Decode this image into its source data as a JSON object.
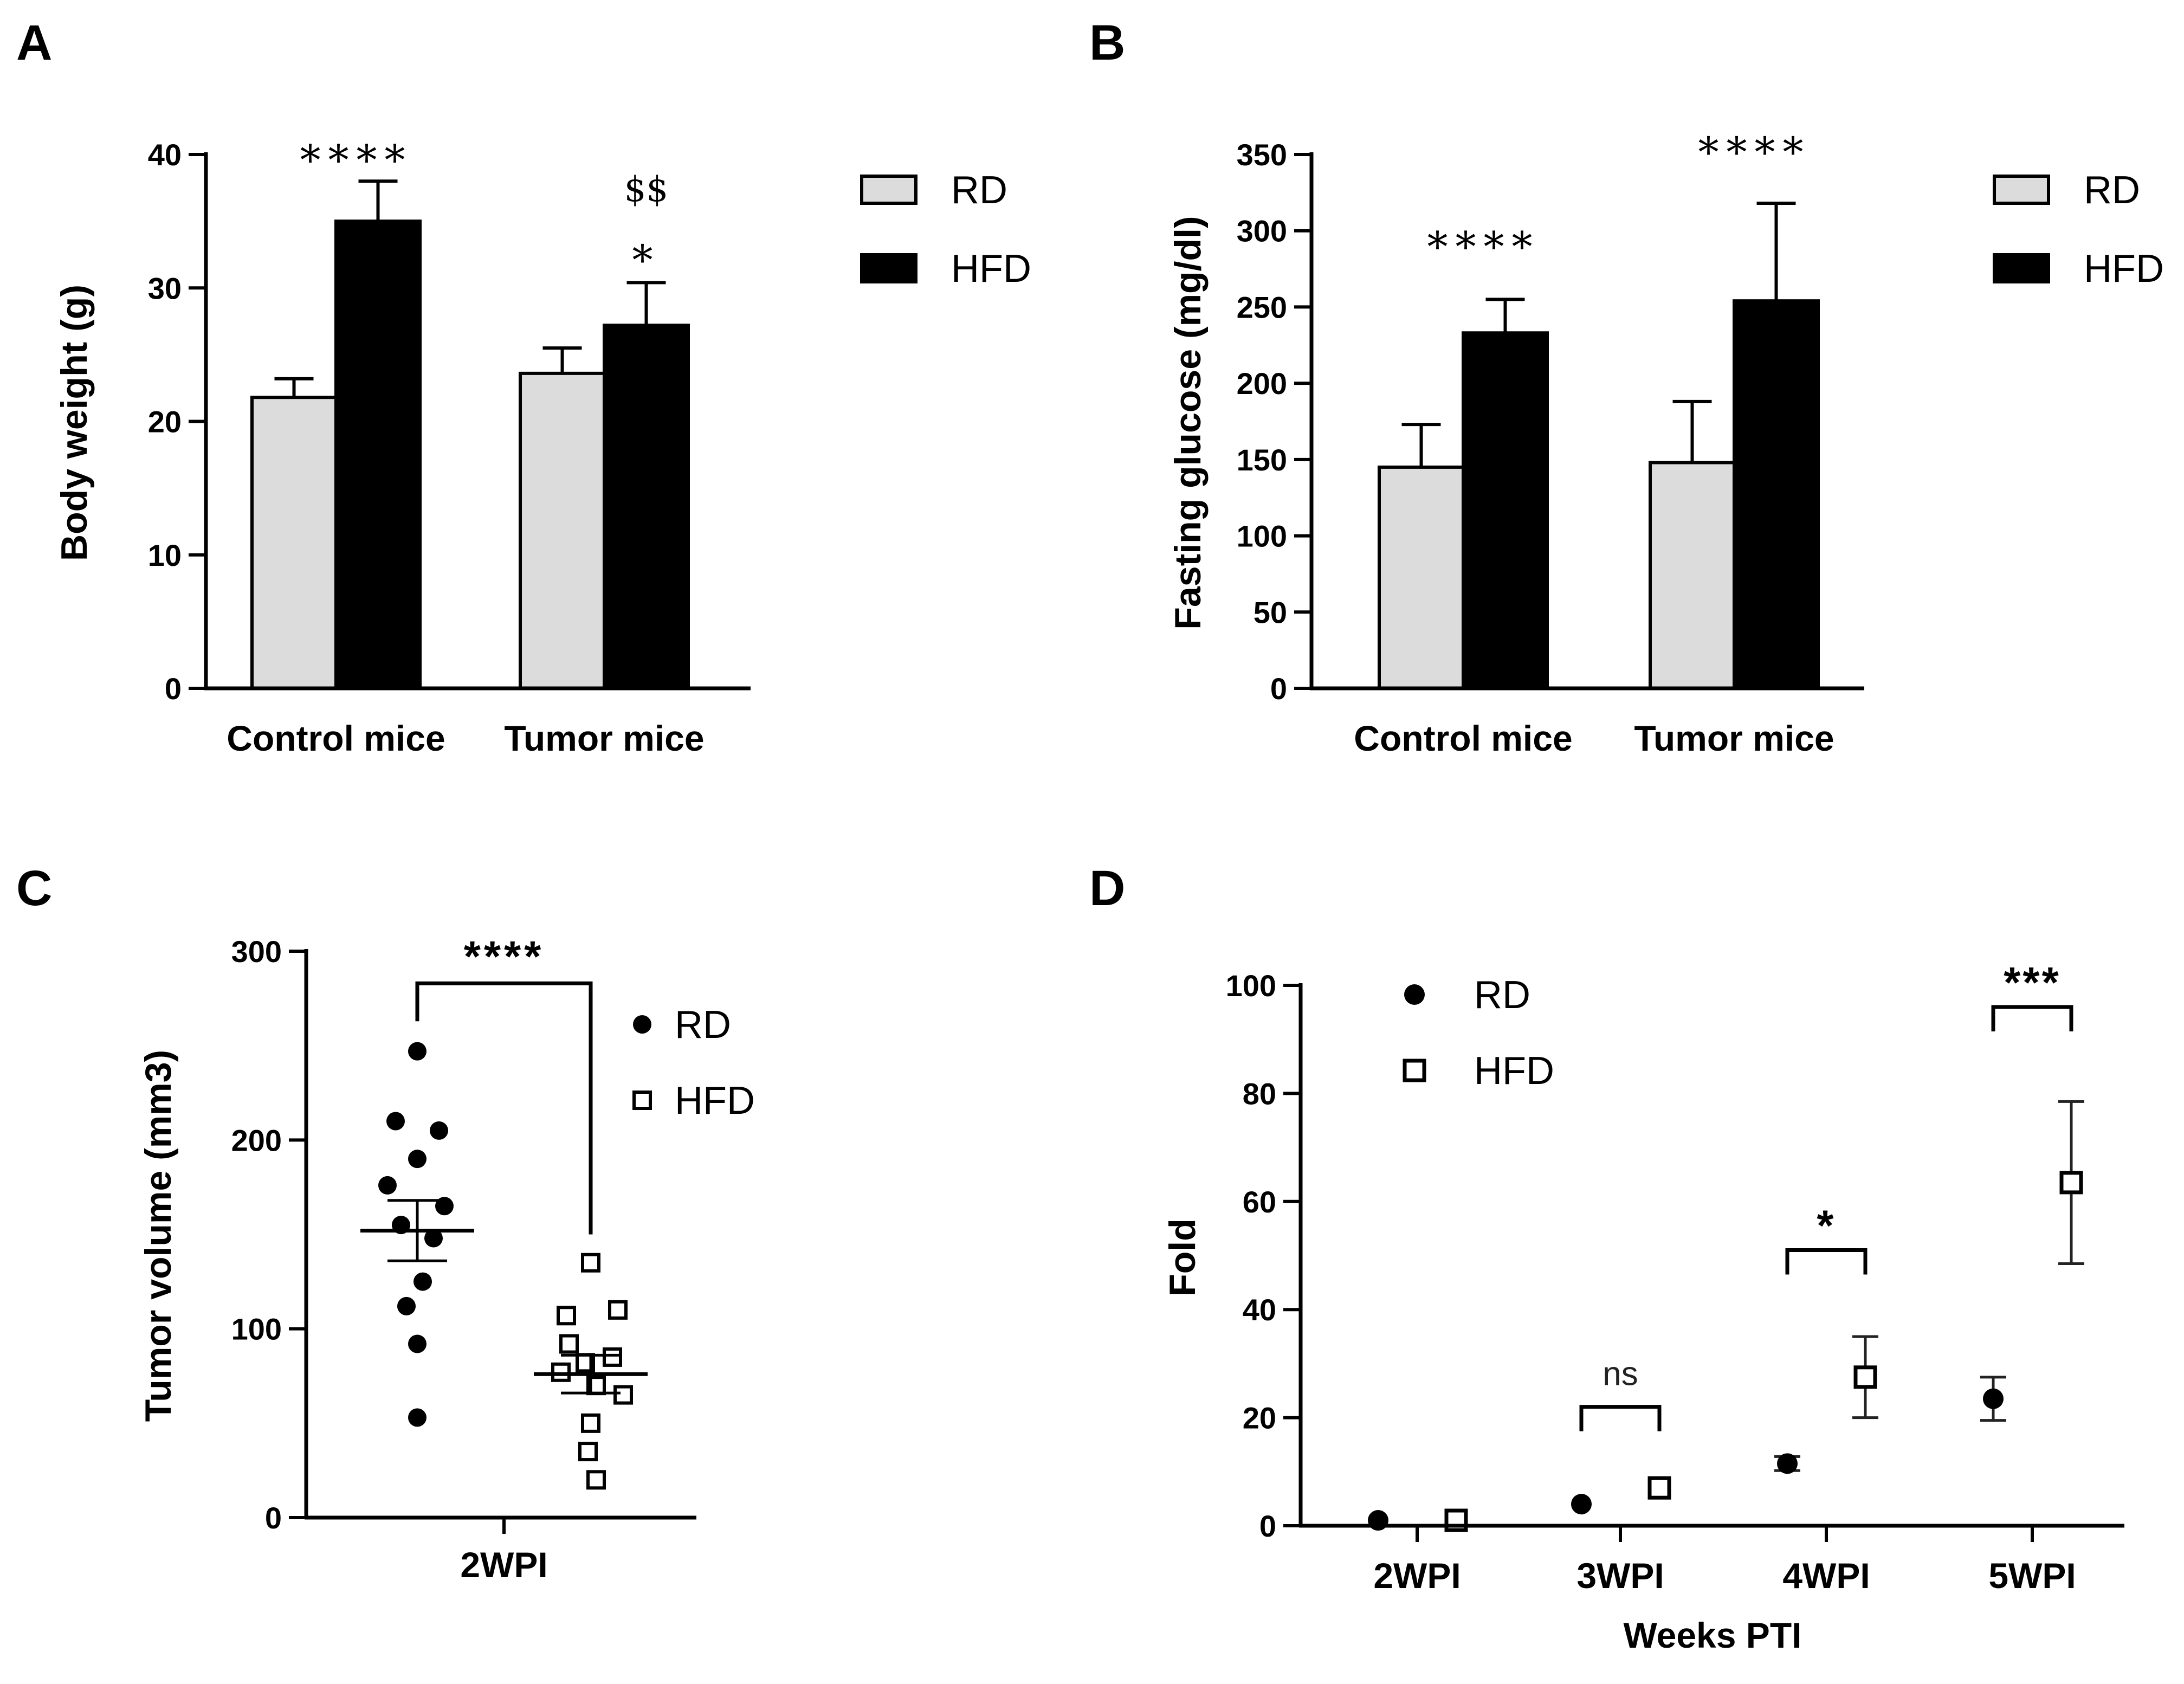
{
  "panels": {
    "A": "A",
    "B": "B",
    "C": "C",
    "D": "D"
  },
  "chart_data": [
    {
      "panel": "A",
      "type": "bar",
      "ylabel": "Body weight (g)",
      "xlabel": "",
      "ylim": [
        0,
        40
      ],
      "yticks": [
        "0",
        "10",
        "20",
        "30",
        "40"
      ],
      "yticks_values": [
        0,
        10,
        20,
        30,
        40
      ],
      "categories": [
        "Control mice",
        "Tumor mice"
      ],
      "series": [
        {
          "name": "RD",
          "color": "#dcdcdc",
          "values": [
            21.8,
            23.6
          ],
          "errors": [
            1.4,
            1.9
          ]
        },
        {
          "name": "HFD",
          "color": "#000000",
          "values": [
            35.0,
            27.2
          ],
          "errors": [
            3.0,
            3.2
          ]
        }
      ],
      "legend": [
        "RD",
        "HFD"
      ],
      "legend_position": "right",
      "annotations": [
        {
          "text": "****",
          "category": 0,
          "above_value": 38.5,
          "style": "star"
        },
        {
          "text": "*",
          "category": 1,
          "above_value": 31.0,
          "style": "star"
        },
        {
          "text": "$$",
          "category": 1,
          "above_value": 36.5,
          "style": "dollar"
        }
      ]
    },
    {
      "panel": "B",
      "type": "bar",
      "ylabel": "Fasting glucose (mg/dl)",
      "xlabel": "",
      "ylim": [
        0,
        350
      ],
      "yticks": [
        "0",
        "50",
        "100",
        "150",
        "200",
        "250",
        "300",
        "350"
      ],
      "yticks_values": [
        0,
        50,
        100,
        150,
        200,
        250,
        300,
        350
      ],
      "categories": [
        "Control mice",
        "Tumor mice"
      ],
      "series": [
        {
          "name": "RD",
          "color": "#dcdcdc",
          "values": [
            145,
            148
          ],
          "errors": [
            28,
            40
          ]
        },
        {
          "name": "HFD",
          "color": "#000000",
          "values": [
            233,
            254
          ],
          "errors": [
            22,
            64
          ]
        }
      ],
      "legend": [
        "RD",
        "HFD"
      ],
      "legend_position": "right",
      "annotations": [
        {
          "text": "****",
          "category": 0,
          "above_value": 280,
          "style": "star"
        },
        {
          "text": "****",
          "category": 1,
          "above_value": 342,
          "style": "star"
        }
      ]
    },
    {
      "panel": "C",
      "type": "scatter",
      "ylabel": "Tumor volume (mm3)",
      "xlabel": "",
      "ylim": [
        0,
        300
      ],
      "yticks": [
        "0",
        "100",
        "200",
        "300"
      ],
      "yticks_values": [
        0,
        100,
        200,
        300
      ],
      "categories": [
        "2WPI"
      ],
      "series": [
        {
          "name": "RD",
          "marker": "filled-circle",
          "mean": 152,
          "sem": 16,
          "points": [
            247,
            210,
            205,
            190,
            176,
            165,
            155,
            148,
            125,
            112,
            92,
            53
          ]
        },
        {
          "name": "HFD",
          "marker": "open-square",
          "mean": 76,
          "sem": 10,
          "points": [
            135,
            110,
            107,
            92,
            85,
            82,
            77,
            70,
            65,
            50,
            35,
            20
          ]
        }
      ],
      "legend": [
        "RD",
        "HFD"
      ],
      "legend_position": "top-right",
      "annotations": [
        {
          "text": "****",
          "bracket": true,
          "level": 283
        }
      ]
    },
    {
      "panel": "D",
      "type": "scatter",
      "ylabel": "Fold",
      "xlabel": "Weeks PTI",
      "ylim": [
        0,
        100
      ],
      "yticks": [
        "0",
        "20",
        "40",
        "60",
        "80",
        "100"
      ],
      "yticks_values": [
        0,
        20,
        40,
        60,
        80,
        100
      ],
      "categories": [
        "2WPI",
        "3WPI",
        "4WPI",
        "5WPI"
      ],
      "series": [
        {
          "name": "RD",
          "marker": "filled-circle",
          "values": [
            1,
            4,
            11.5,
            23.5
          ],
          "errors": [
            0.5,
            0.5,
            1.3,
            4.0
          ]
        },
        {
          "name": "HFD",
          "marker": "open-square",
          "values": [
            1,
            7,
            27.5,
            63.5
          ],
          "errors": [
            0.5,
            1.0,
            7.5,
            15.0
          ]
        }
      ],
      "legend": [
        "RD",
        "HFD"
      ],
      "legend_position": "top-left",
      "annotations": [
        {
          "text": "ns",
          "category": 1,
          "level": 22
        },
        {
          "text": "*",
          "category": 2,
          "level": 51
        },
        {
          "text": "***",
          "category": 3,
          "level": 96
        }
      ]
    }
  ]
}
